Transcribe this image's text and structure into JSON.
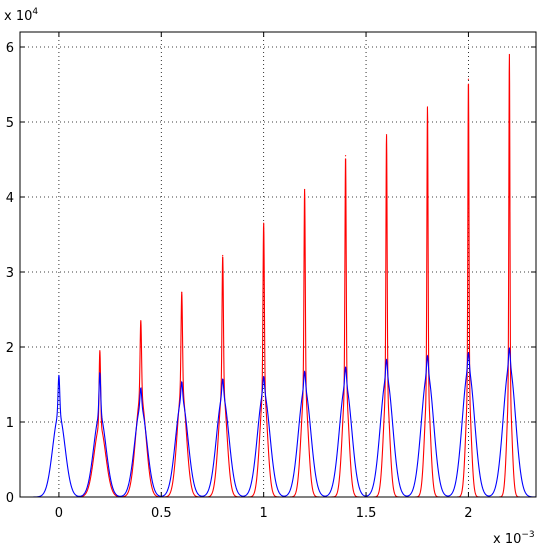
{
  "chart_data": {
    "type": "line",
    "title": "",
    "xlabel": "",
    "ylabel": "",
    "x_multiplier_label": "x 10",
    "x_multiplier_exp": "−3",
    "y_multiplier_label": "x 10",
    "y_multiplier_exp": "4",
    "xlim": [
      -0.00019,
      0.00233
    ],
    "ylim": [
      0,
      62000
    ],
    "grid": true,
    "x_ticks": [
      0,
      0.5,
      1,
      1.5,
      2
    ],
    "x_tick_labels": [
      "0",
      "0.5",
      "1",
      "1.5",
      "2"
    ],
    "x_tick_values": [
      0,
      0.0005,
      0.001,
      0.0015,
      0.002
    ],
    "y_ticks": [
      0,
      10000,
      20000,
      30000,
      40000,
      50000,
      60000
    ],
    "y_tick_labels": [
      "0",
      "1",
      "2",
      "3",
      "4",
      "5",
      "6"
    ],
    "series": [
      {
        "color": "#ff0000",
        "peaks": [
          {
            "x": 0.0002,
            "y": 19500,
            "y_base": 9500,
            "narrow_w": 3.5e-06,
            "wide_w": 2.8e-05
          },
          {
            "x": 0.0004,
            "y": 23500,
            "y_base": 13500,
            "narrow_w": 3.5e-06,
            "wide_w": 2.5e-05
          },
          {
            "x": 0.0006,
            "y": 27300,
            "y_base": 14500,
            "narrow_w": 3.5e-06,
            "wide_w": 2.2e-05
          },
          {
            "x": 0.0008,
            "y": 32200,
            "y_base": 14500,
            "narrow_w": 3.3e-06,
            "wide_w": 2e-05
          },
          {
            "x": 0.001,
            "y": 36500,
            "y_base": 14500,
            "narrow_w": 3.2e-06,
            "wide_w": 1.8e-05
          },
          {
            "x": 0.0012,
            "y": 41000,
            "y_base": 14500,
            "narrow_w": 3.1e-06,
            "wide_w": 1.7e-05
          },
          {
            "x": 0.0014,
            "y": 45500,
            "y_base": 14500,
            "narrow_w": 3e-06,
            "wide_w": 1.6e-05
          },
          {
            "x": 0.0016,
            "y": 48300,
            "y_base": 14500,
            "narrow_w": 2.9e-06,
            "wide_w": 1.5e-05
          },
          {
            "x": 0.0018,
            "y": 52000,
            "y_base": 14500,
            "narrow_w": 2.8e-06,
            "wide_w": 1.4e-05
          },
          {
            "x": 0.002,
            "y": 55700,
            "y_base": 14500,
            "narrow_w": 2.7e-06,
            "wide_w": 1.3e-05
          },
          {
            "x": 0.0022,
            "y": 59000,
            "y_base": 14500,
            "narrow_w": 2.6e-06,
            "wide_w": 1.2e-05
          }
        ]
      },
      {
        "color": "#0000ff",
        "peaks": [
          {
            "x": 0.0,
            "y": 16200,
            "y_base": 11000,
            "narrow_w": 4e-06,
            "wide_w": 3e-05
          },
          {
            "x": 0.0002,
            "y": 16500,
            "y_base": 11000,
            "narrow_w": 4e-06,
            "wide_w": 3e-05
          },
          {
            "x": 0.0004,
            "y": 14500,
            "y_base": 12000,
            "narrow_w": 4e-06,
            "wide_w": 3e-05
          },
          {
            "x": 0.0006,
            "y": 15300,
            "y_base": 13000,
            "narrow_w": 4e-06,
            "wide_w": 3e-05
          },
          {
            "x": 0.0008,
            "y": 15700,
            "y_base": 13500,
            "narrow_w": 4e-06,
            "wide_w": 3e-05
          },
          {
            "x": 0.001,
            "y": 16000,
            "y_base": 14000,
            "narrow_w": 4e-06,
            "wide_w": 3e-05
          },
          {
            "x": 0.0012,
            "y": 16700,
            "y_base": 14500,
            "narrow_w": 4e-06,
            "wide_w": 3e-05
          },
          {
            "x": 0.0014,
            "y": 17300,
            "y_base": 15000,
            "narrow_w": 4e-06,
            "wide_w": 3e-05
          },
          {
            "x": 0.0016,
            "y": 18300,
            "y_base": 16000,
            "narrow_w": 4e-06,
            "wide_w": 3e-05
          },
          {
            "x": 0.0018,
            "y": 18800,
            "y_base": 16500,
            "narrow_w": 4e-06,
            "wide_w": 3e-05
          },
          {
            "x": 0.002,
            "y": 19200,
            "y_base": 17000,
            "narrow_w": 4e-06,
            "wide_w": 3e-05
          },
          {
            "x": 0.0022,
            "y": 19800,
            "y_base": 17500,
            "narrow_w": 4e-06,
            "wide_w": 3e-05
          }
        ]
      }
    ]
  }
}
